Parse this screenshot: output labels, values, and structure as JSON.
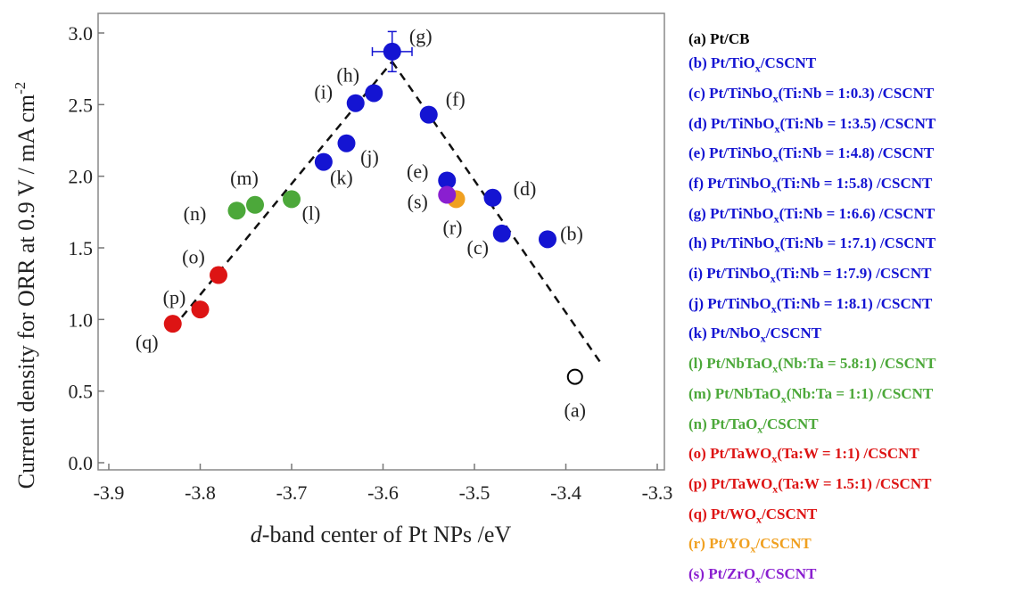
{
  "chart_data": {
    "type": "scatter",
    "xlabel_italic": "d",
    "xlabel_rest": "-band center of Pt NPs /eV",
    "ylabel": "Current density for ORR at 0.9 V / mA cm",
    "ylabel_sup": "-2",
    "xlim": [
      -3.9,
      -3.3
    ],
    "ylim": [
      0.0,
      3.0
    ],
    "xticks": [
      "-3.9",
      "-3.8",
      "-3.7",
      "-3.6",
      "-3.5",
      "-3.4",
      "-3.3"
    ],
    "yticks": [
      "0.0",
      "0.5",
      "1.0",
      "1.5",
      "2.0",
      "2.5",
      "3.0"
    ],
    "points": [
      {
        "id": "a",
        "label": "(a)",
        "x": -3.39,
        "y": 0.6,
        "color": "#000000",
        "hollow": true
      },
      {
        "id": "b",
        "label": "(b)",
        "x": -3.42,
        "y": 1.56,
        "color": "#1414d2"
      },
      {
        "id": "c",
        "label": "(c)",
        "x": -3.47,
        "y": 1.6,
        "color": "#1414d2"
      },
      {
        "id": "d",
        "label": "(d)",
        "x": -3.48,
        "y": 1.85,
        "color": "#1414d2"
      },
      {
        "id": "e",
        "label": "(e)",
        "x": -3.53,
        "y": 1.97,
        "color": "#1414d2"
      },
      {
        "id": "f",
        "label": "(f)",
        "x": -3.55,
        "y": 2.43,
        "color": "#1414d2"
      },
      {
        "id": "g",
        "label": "(g)",
        "x": -3.59,
        "y": 2.87,
        "color": "#1414d2",
        "xerr": 0.01,
        "yerr": 0.14
      },
      {
        "id": "h",
        "label": "(h)",
        "x": -3.61,
        "y": 2.58,
        "color": "#1414d2"
      },
      {
        "id": "i",
        "label": "(i)",
        "x": -3.63,
        "y": 2.51,
        "color": "#1414d2"
      },
      {
        "id": "j",
        "label": "(j)",
        "x": -3.64,
        "y": 2.23,
        "color": "#1414d2"
      },
      {
        "id": "k",
        "label": "(k)",
        "x": -3.665,
        "y": 2.1,
        "color": "#1414d2"
      },
      {
        "id": "l",
        "label": "(l)",
        "x": -3.7,
        "y": 1.84,
        "color": "#4ca83a"
      },
      {
        "id": "m",
        "label": "(m)",
        "x": -3.74,
        "y": 1.8,
        "color": "#4ca83a"
      },
      {
        "id": "n",
        "label": "(n)",
        "x": -3.76,
        "y": 1.76,
        "color": "#4ca83a"
      },
      {
        "id": "o",
        "label": "(o)",
        "x": -3.78,
        "y": 1.31,
        "color": "#dd1414"
      },
      {
        "id": "p",
        "label": "(p)",
        "x": -3.8,
        "y": 1.07,
        "color": "#dd1414"
      },
      {
        "id": "q",
        "label": "(q)",
        "x": -3.83,
        "y": 0.97,
        "color": "#dd1414"
      },
      {
        "id": "r",
        "label": "(r)",
        "x": -3.52,
        "y": 1.84,
        "color": "#f0a020"
      },
      {
        "id": "s",
        "label": "(s)",
        "x": -3.53,
        "y": 1.87,
        "color": "#8a1fd0"
      }
    ],
    "trend_lines": [
      {
        "from": [
          -3.83,
          0.94
        ],
        "to": [
          -3.59,
          2.8
        ]
      },
      {
        "from": [
          -3.59,
          2.8
        ],
        "to": [
          -3.36,
          0.68
        ]
      }
    ],
    "legend": [
      {
        "parts": [
          "(a) Pt/CB"
        ],
        "color": "#000000"
      },
      {
        "parts": [
          "(b) Pt/TiO",
          "x",
          "/CSCNT"
        ],
        "color": "#1414d2"
      },
      {
        "parts": [
          "(c) Pt/TiNbO",
          "x",
          "(Ti:Nb = 1:0.3) /CSCNT"
        ],
        "color": "#1414d2"
      },
      {
        "parts": [
          "(d) Pt/TiNbO",
          "x",
          "(Ti:Nb = 1:3.5) /CSCNT"
        ],
        "color": "#1414d2"
      },
      {
        "parts": [
          "(e) Pt/TiNbO",
          "x",
          "(Ti:Nb = 1:4.8) /CSCNT"
        ],
        "color": "#1414d2"
      },
      {
        "parts": [
          "(f) Pt/TiNbO",
          "x",
          "(Ti:Nb = 1:5.8) /CSCNT"
        ],
        "color": "#1414d2"
      },
      {
        "parts": [
          "(g) Pt/TiNbO",
          "x",
          "(Ti:Nb = 1:6.6) /CSCNT"
        ],
        "color": "#1414d2"
      },
      {
        "parts": [
          "(h) Pt/TiNbO",
          "x",
          "(Ti:Nb = 1:7.1) /CSCNT"
        ],
        "color": "#1414d2"
      },
      {
        "parts": [
          "(i) Pt/TiNbO",
          "x",
          "(Ti:Nb = 1:7.9) /CSCNT"
        ],
        "color": "#1414d2"
      },
      {
        "parts": [
          "(j) Pt/TiNbO",
          "x",
          "(Ti:Nb = 1:8.1) /CSCNT"
        ],
        "color": "#1414d2"
      },
      {
        "parts": [
          "(k) Pt/NbO",
          "x",
          "/CSCNT"
        ],
        "color": "#1414d2"
      },
      {
        "parts": [
          "(l) Pt/NbTaO",
          "x",
          "(Nb:Ta = 5.8:1) /CSCNT"
        ],
        "color": "#4ca83a"
      },
      {
        "parts": [
          "(m) Pt/NbTaO",
          "x",
          "(Nb:Ta = 1:1) /CSCNT"
        ],
        "color": "#4ca83a"
      },
      {
        "parts": [
          "(n) Pt/TaO",
          "x",
          "/CSCNT"
        ],
        "color": "#4ca83a"
      },
      {
        "parts": [
          "(o) Pt/TaWO",
          "x",
          "(Ta:W = 1:1) /CSCNT"
        ],
        "color": "#dd1414"
      },
      {
        "parts": [
          "(p) Pt/TaWO",
          "x",
          "(Ta:W = 1.5:1) /CSCNT"
        ],
        "color": "#dd1414"
      },
      {
        "parts": [
          "(q) Pt/WO",
          "x",
          "/CSCNT"
        ],
        "color": "#dd1414"
      },
      {
        "parts": [
          "(r) Pt/YO",
          "x",
          "/CSCNT"
        ],
        "color": "#f0a020"
      },
      {
        "parts": [
          "(s) Pt/ZrO",
          "x",
          "/CSCNT"
        ],
        "color": "#8a1fd0"
      }
    ]
  }
}
